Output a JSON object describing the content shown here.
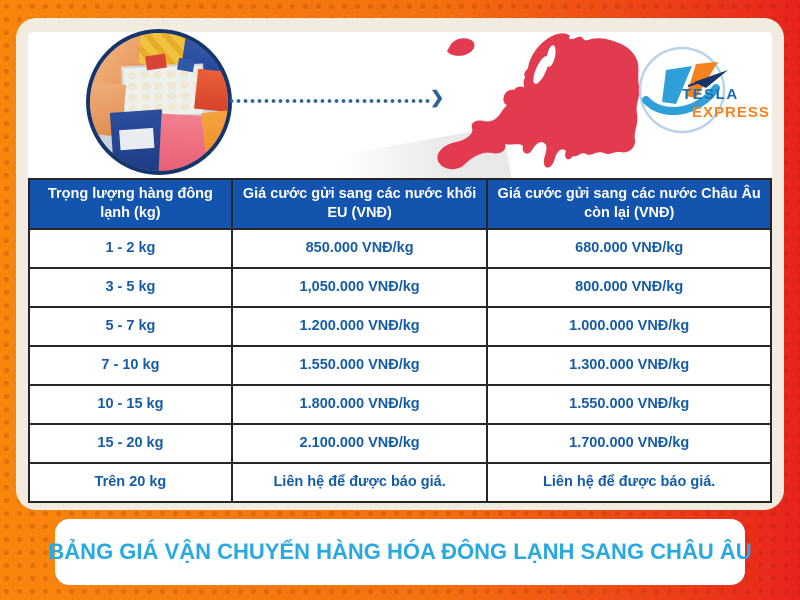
{
  "brand": {
    "name_top": "TESLA",
    "name_bottom": "EXPRESS"
  },
  "hero": {
    "photo": "frozen-foods-in-freezer",
    "arrow": "dotted-arrow-right",
    "map": "europe-map-silhouette"
  },
  "table": {
    "headers": [
      "Trọng lượng hàng đông lạnh (kg)",
      "Giá cước gửi sang các nước khối EU (VNĐ)",
      "Giá cước gửi sang các nước Châu Âu còn lại (VNĐ)"
    ],
    "rows": [
      [
        "1 - 2 kg",
        "850.000 VNĐ/kg",
        "680.000 VNĐ/kg"
      ],
      [
        "3 - 5 kg",
        "1,050.000 VNĐ/kg",
        "800.000 VNĐ/kg"
      ],
      [
        "5 - 7 kg",
        "1.200.000 VNĐ/kg",
        "1.000.000 VNĐ/kg"
      ],
      [
        "7 - 10 kg",
        "1.550.000 VNĐ/kg",
        "1.300.000 VNĐ/kg"
      ],
      [
        "10 - 15 kg",
        "1.800.000 VNĐ/kg",
        "1.550.000 VNĐ/kg"
      ],
      [
        "15 - 20 kg",
        "2.100.000 VNĐ/kg",
        "1.700.000 VNĐ/kg"
      ],
      [
        "Trên 20 kg",
        "Liên hệ để được báo giá.",
        "Liên hệ để được báo giá."
      ]
    ]
  },
  "footer": {
    "title": "BẢNG GIÁ VẬN CHUYỂN HÀNG HÓA ĐÔNG LẠNH SANG CHÂU ÂU"
  },
  "colors": {
    "frame_gradient_left": "#f8860d",
    "frame_gradient_right": "#e8231d",
    "card_cream": "#f2ebe0",
    "header_blue": "#1254ae",
    "cell_text_blue": "#155ca8",
    "map_red": "#e23a4f",
    "footer_title_blue": "#29a9e1",
    "logo_blue": "#2e9fd9",
    "logo_orange": "#f58220",
    "logo_navy": "#16356b"
  }
}
